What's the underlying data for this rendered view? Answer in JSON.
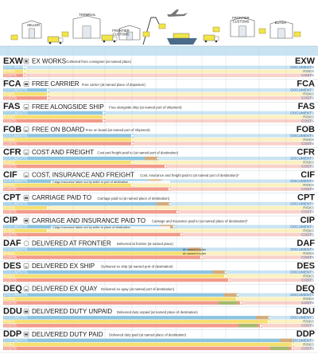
{
  "header_labels": {
    "seller": "SELLER",
    "terminal": "TERMINAL",
    "frontier_customs_1": "FRONTIER\nCUSTOMS",
    "frontier_customs_2": "FRONTIER\nCUSTOMS",
    "buyer": "BUYER"
  },
  "row_labels": [
    "DOCUMENTS",
    "RISKS",
    "COSTS"
  ],
  "colors": {
    "documents": "#8cc4e2",
    "risks": "#f6df6e",
    "costs": "#f29a8a",
    "orange": "#f2a253",
    "green": "#86c45f",
    "header_band": "#c9e3f2",
    "rule": "#d2dde6"
  },
  "terms": [
    {
      "code": "EXW",
      "name": "EX WORKS",
      "note": "Collected from consignee (at named place)",
      "icon": "warehouse-icon"
    },
    {
      "code": "FCA",
      "name": "FREE CARRIER",
      "note": "Free carrier (at named place of departure)",
      "icon": "truck-icon"
    },
    {
      "code": "FAS",
      "name": "FREE ALONGSIDE SHIP",
      "note": "Free alongside ship (at named port of shipment)",
      "icon": "ship-icon"
    },
    {
      "code": "FOB",
      "name": "FREE ON BOARD",
      "note": "Free on board (at named port of shipment)",
      "icon": "ship-icon"
    },
    {
      "code": "CFR",
      "name": "COST AND FREIGHT",
      "note": "Cost and freight paid to (at named port of destination)",
      "icon": "ship-icon"
    },
    {
      "code": "CIF",
      "name": "COST, INSURANCE AND FREIGHT",
      "note": "Cost, insurance and freight paid to (at named port of destination)*",
      "icon": "ship-icon",
      "insurance": "Cargo insurance taken out by seller to port of destination"
    },
    {
      "code": "CPT",
      "name": "CARRIAGE PAID TO",
      "note": "Carriage paid to (at named place of destination)",
      "icon": "truck-icon"
    },
    {
      "code": "CIP",
      "name": "CARRIAGE AND INSURANCE PAID TO",
      "note": "Carriage and insurance paid to (at named place of destination)*",
      "icon": "truck-icon",
      "insurance": "Cargo insurance taken out by seller to place of destination"
    },
    {
      "code": "DAF",
      "name": "DELIVERED AT FRONTIER",
      "note": "Delivered at frontier (at named place)",
      "icon": "frontier-icon",
      "subs": [
        "At named frontier",
        "At named frontier"
      ]
    },
    {
      "code": "DES",
      "name": "DELIVERED EX SHIP",
      "note": "Delivered ex ship (at named port of destination)",
      "icon": "ship-icon"
    },
    {
      "code": "DEQ",
      "name": "DELIVERED EX QUAY",
      "note": "Delivered ex quay (at named port of destination)",
      "icon": "ship-icon"
    },
    {
      "code": "DDU",
      "name": "DELIVERED DUTY UNPAID",
      "note": "Delivered duty unpaid (at named place of destination)",
      "icon": "truck-icon"
    },
    {
      "code": "DDP",
      "name": "DELIVERED DUTY PAID",
      "note": "Delivered duty paid (at named place of destination)",
      "icon": "truck-icon"
    }
  ]
}
